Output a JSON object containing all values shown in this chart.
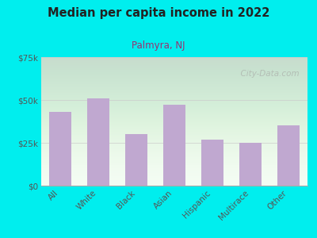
{
  "title": "Median per capita income in 2022",
  "subtitle": "Palmyra, NJ",
  "categories": [
    "All",
    "White",
    "Black",
    "Asian",
    "Hispanic",
    "Multirace",
    "Other"
  ],
  "values": [
    43000,
    51000,
    30000,
    47000,
    27000,
    25000,
    35000
  ],
  "bar_color": "#C0A8D0",
  "background_outer": "#00EEEE",
  "title_color": "#222222",
  "subtitle_color": "#9B3070",
  "tick_label_color": "#555555",
  "ylim": [
    0,
    75000
  ],
  "yticks": [
    0,
    25000,
    50000,
    75000
  ],
  "ytick_labels": [
    "$0",
    "$25k",
    "$50k",
    "$75k"
  ],
  "watermark": "  City-Data.com",
  "watermark_color": "#b0b8b0"
}
